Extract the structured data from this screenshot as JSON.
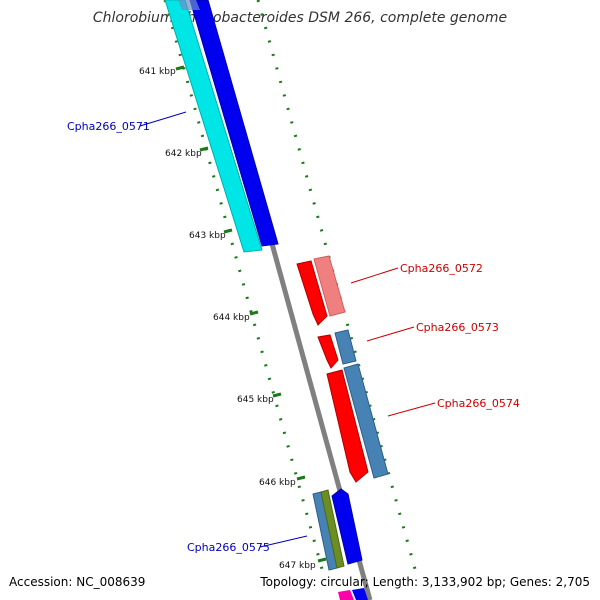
{
  "title": "Chlorobium phaeobacteroides DSM 266, complete genome",
  "footer": {
    "accession": "Accession: NC_008639",
    "topology": "Topology: circular; Length: 3,133,902 bp; Genes: 2,705"
  },
  "colors": {
    "backbone": "#808080",
    "tick": "#1a7a1a",
    "forward_label": "#0000bb",
    "reverse_label": "#cc0000",
    "cyan": "#00e5e5",
    "blue": "#0000ee",
    "red": "#ff0000",
    "pink": "#f08080",
    "steelblue": "#4682b4",
    "olive": "#6b8e23",
    "magenta": "#ff00aa"
  },
  "tick_labels": [
    "641 kbp",
    "642 kbp",
    "643 kbp",
    "644 kbp",
    "645 kbp",
    "646 kbp",
    "647 kbp"
  ],
  "gene_labels": {
    "g0571": "Cpha266_0571",
    "g0572": "Cpha266_0572",
    "g0573": "Cpha266_0573",
    "g0574": "Cpha266_0574",
    "g0575": "Cpha266_0575"
  }
}
